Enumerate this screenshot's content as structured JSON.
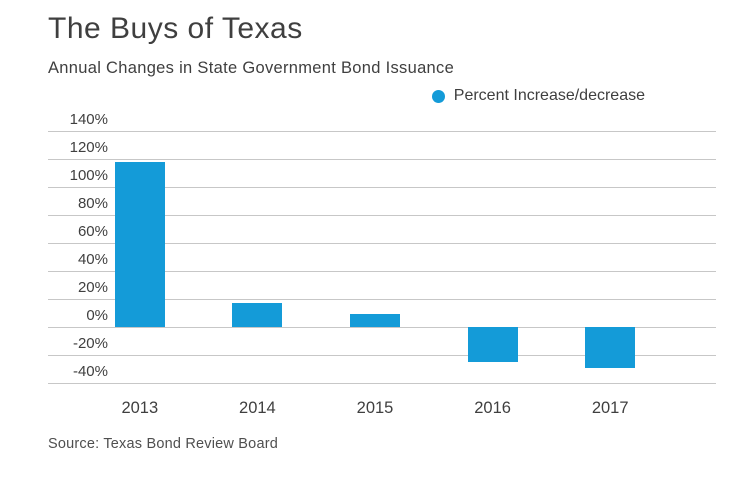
{
  "title": "The Buys of Texas",
  "subtitle": "Annual Changes in State Government Bond Issuance",
  "legend": {
    "label": "Percent Increase/decrease",
    "marker_color": "#149bd8"
  },
  "source": "Source: Texas Bond Review Board",
  "colors": {
    "bar": "#149bd8",
    "gridline": "#c7c7c7",
    "text": "#3f3f3f",
    "background": "#ffffff"
  },
  "chart_data": {
    "type": "bar",
    "title": "The Buys of Texas",
    "subtitle": "Annual Changes in State Government Bond Issuance",
    "categories": [
      "2013",
      "2014",
      "2015",
      "2016",
      "2017"
    ],
    "values": [
      118,
      17,
      9,
      -25,
      -29
    ],
    "series_name": "Percent Increase/decrease",
    "ylabel": "",
    "xlabel": "",
    "ylim": [
      -40,
      140
    ],
    "ytick_step": 20,
    "ytick_labels": [
      "140%",
      "120%",
      "100%",
      "80%",
      "60%",
      "40%",
      "20%",
      "0%",
      "-20%",
      "-40%"
    ],
    "grid": true,
    "legend_position": "top-right",
    "bar_color": "#149bd8",
    "source": "Source: Texas Bond Review Board"
  }
}
